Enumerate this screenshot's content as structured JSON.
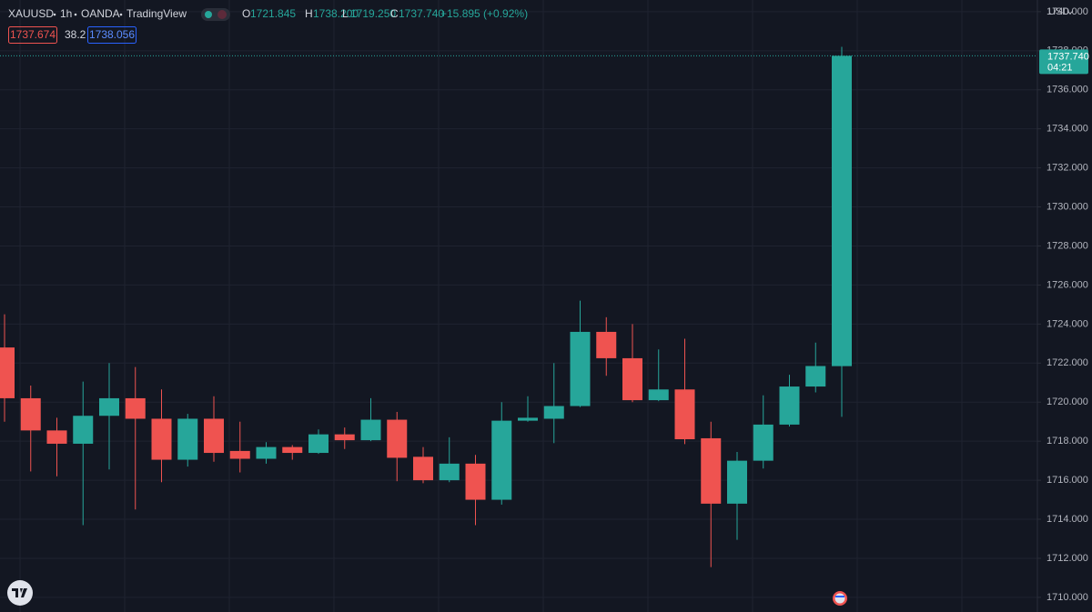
{
  "header": {
    "symbol": "XAUUSD",
    "interval": "1h",
    "exchange": "OANDA",
    "platform": "TradingView",
    "ohlc": [
      {
        "key": "O",
        "value": "1721.845"
      },
      {
        "key": "H",
        "value": "1738.200"
      },
      {
        "key": "L",
        "value": "1719.250"
      },
      {
        "key": "C",
        "value": "1737.740"
      }
    ],
    "change": "+15.895 (+0.92%)"
  },
  "indicator_labels": [
    "1737.674",
    "38.2",
    "1738.056"
  ],
  "chart_data": {
    "type": "candlestick",
    "currency": "USD",
    "up_color": "#26a69a",
    "down_color": "#ef5350",
    "grid": true,
    "open": [
      1722.8,
      1720.2,
      1718.55,
      1717.87,
      1719.3,
      1720.2,
      1719.15,
      1717.05,
      1719.15,
      1717.5,
      1717.1,
      1717.7,
      1717.4,
      1718.35,
      1718.05,
      1719.1,
      1717.2,
      1716.0,
      1716.85,
      1715.0,
      1719.05,
      1719.15,
      1719.8,
      1723.6,
      1722.25,
      1720.1,
      1720.65,
      1718.15,
      1714.8,
      1717.0,
      1718.85,
      1720.8,
      1721.845
    ],
    "high": [
      1724.5,
      1720.85,
      1719.2,
      1721.05,
      1722.0,
      1721.8,
      1720.65,
      1719.4,
      1720.3,
      1719.0,
      1717.95,
      1717.8,
      1718.6,
      1718.7,
      1720.2,
      1719.5,
      1717.7,
      1718.2,
      1717.3,
      1720.0,
      1720.3,
      1722.0,
      1725.2,
      1724.35,
      1724.0,
      1722.7,
      1723.25,
      1719.0,
      1717.45,
      1720.35,
      1721.4,
      1723.05,
      1738.2
    ],
    "low": [
      1719.0,
      1716.45,
      1716.2,
      1713.7,
      1716.55,
      1714.5,
      1715.9,
      1716.7,
      1716.95,
      1716.4,
      1716.85,
      1717.05,
      1717.35,
      1717.6,
      1718.0,
      1715.95,
      1715.85,
      1715.9,
      1713.7,
      1714.75,
      1719.0,
      1717.9,
      1719.75,
      1721.35,
      1720.0,
      1720.05,
      1717.85,
      1711.55,
      1712.95,
      1716.6,
      1718.75,
      1720.5,
      1719.25
    ],
    "close": [
      1720.2,
      1718.55,
      1717.87,
      1719.3,
      1720.2,
      1719.15,
      1717.05,
      1719.15,
      1717.4,
      1717.1,
      1717.7,
      1717.4,
      1718.35,
      1718.05,
      1719.1,
      1717.15,
      1716.0,
      1716.85,
      1715.0,
      1719.05,
      1719.2,
      1719.8,
      1723.6,
      1722.25,
      1720.1,
      1720.65,
      1718.1,
      1714.8,
      1717.0,
      1718.85,
      1720.8,
      1721.85,
      1737.74
    ],
    "ylim": [
      1709.25,
      1740.6
    ],
    "yticks": [
      {
        "value": 1710,
        "label": "1710.000"
      },
      {
        "value": 1712,
        "label": "1712.000"
      },
      {
        "value": 1714,
        "label": "1714.000"
      },
      {
        "value": 1716,
        "label": "1716.000"
      },
      {
        "value": 1718,
        "label": "1718.000"
      },
      {
        "value": 1720,
        "label": "1720.000"
      },
      {
        "value": 1722,
        "label": "1722.000"
      },
      {
        "value": 1724,
        "label": "1724.000"
      },
      {
        "value": 1726,
        "label": "1726.000"
      },
      {
        "value": 1728,
        "label": "1728.000"
      },
      {
        "value": 1730,
        "label": "1730.000"
      },
      {
        "value": 1732,
        "label": "1732.000"
      },
      {
        "value": 1734,
        "label": "1734.000"
      },
      {
        "value": 1736,
        "label": "1736.000"
      },
      {
        "value": 1738,
        "label": "1738.000"
      },
      {
        "value": 1740,
        "label": "1740.000"
      }
    ],
    "last_price": {
      "value": 1737.74,
      "label": "1737.740"
    },
    "countdown": "04:21"
  }
}
